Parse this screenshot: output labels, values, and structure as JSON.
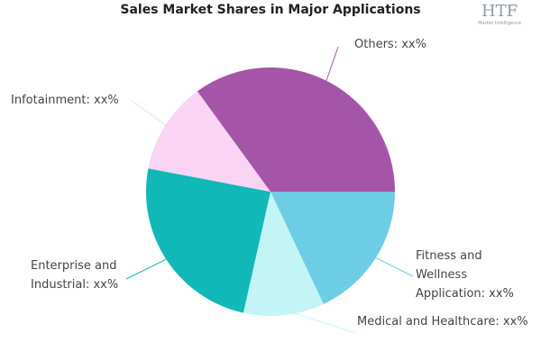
{
  "chart_data": {
    "type": "pie",
    "title": "Sales Market Shares in Major Applications",
    "categories": [
      "Fitness and Wellness Application: xx%",
      "Medical and Healthcare: xx%",
      "Enterprise and Industrial: xx%",
      "Infotainment: xx%",
      "Others: xx%"
    ],
    "values": [
      18,
      10.5,
      24.5,
      12,
      35
    ],
    "colors": [
      "#6dcde4",
      "#c3f5f6",
      "#10b8b8",
      "#fad4f4",
      "#a455a8"
    ]
  },
  "logo": {
    "name": "HTF",
    "tagline": "Market Intelligence"
  }
}
